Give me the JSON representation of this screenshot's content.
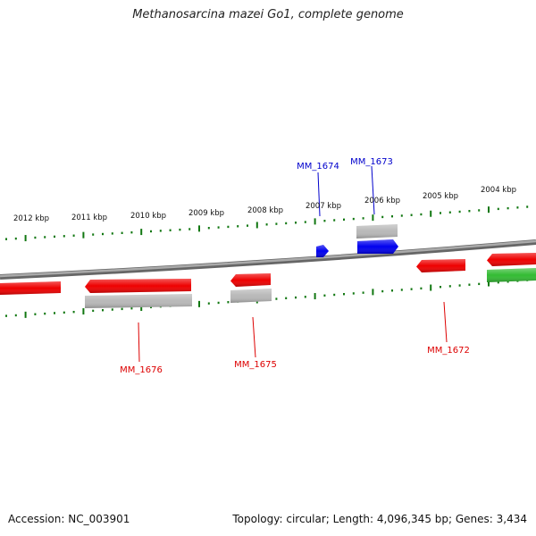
{
  "title": "Methanosarcina mazei Go1, complete genome",
  "footer": {
    "accession": "Accession: NC_003901",
    "summary": "Topology: circular; Length: 4,096,345 bp; Genes: 3,434"
  },
  "colors": {
    "forward_gene": "#ee0000",
    "forward_label": "#dd0000",
    "reverse_gene": "#0000ee",
    "reverse_label": "#0000cc",
    "rna_gene": "#33bb33",
    "cds_gray": "#b8b8b8",
    "backbone": "#888888",
    "tick": "#117711"
  },
  "ticks": [
    {
      "label": "2012 kbp"
    },
    {
      "label": "2011 kbp"
    },
    {
      "label": "2010 kbp"
    },
    {
      "label": "2009 kbp"
    },
    {
      "label": "2008 kbp"
    },
    {
      "label": "2007 kbp"
    },
    {
      "label": "2006 kbp"
    },
    {
      "label": "2005 kbp"
    },
    {
      "label": "2004 kbp"
    }
  ],
  "gene_labels": [
    {
      "label": "MM_1674",
      "strand": "reverse"
    },
    {
      "label": "MM_1673",
      "strand": "reverse"
    },
    {
      "label": "MM_1676",
      "strand": "forward"
    },
    {
      "label": "MM_1675",
      "strand": "forward"
    },
    {
      "label": "MM_1672",
      "strand": "forward"
    }
  ]
}
